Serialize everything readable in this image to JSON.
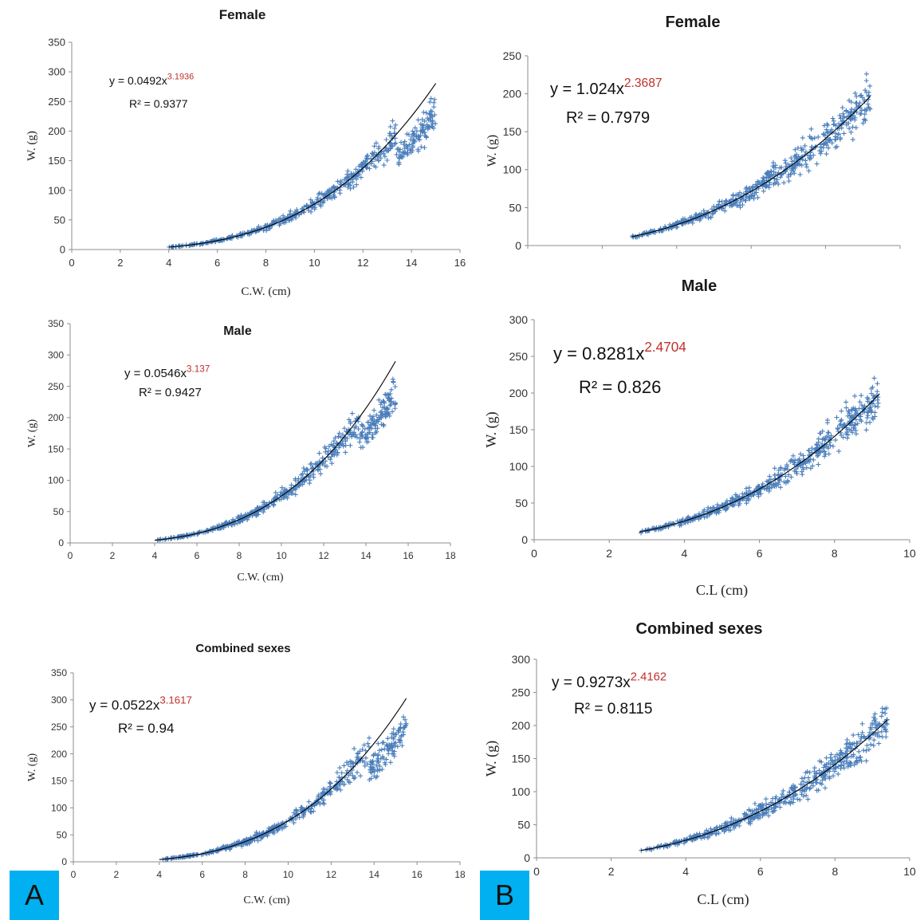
{
  "panel_labels": [
    "A",
    "B"
  ],
  "chart_data": [
    {
      "type": "scatter",
      "title": "Female",
      "xlabel": "C.W. (cm)",
      "ylabel": "W. (g)",
      "xlim": [
        0,
        16
      ],
      "ylim": [
        0,
        350
      ],
      "xticks": [
        0,
        2,
        4,
        6,
        8,
        10,
        12,
        14,
        16
      ],
      "yticks": [
        0,
        50,
        100,
        150,
        200,
        250,
        300,
        350
      ],
      "x_range": [
        4,
        15
      ],
      "fit": {
        "equation": "y = 0.0492x",
        "a": 0.0492,
        "b": 3.1936,
        "exponent_label": "3.1936",
        "r2_label": "R² = 0.9377"
      },
      "series_color": "#4a7ebb",
      "marker": "+"
    },
    {
      "type": "scatter",
      "title": "Male",
      "xlabel": "C.W. (cm)",
      "ylabel": "W. (g)",
      "xlim": [
        0,
        18
      ],
      "ylim": [
        0,
        350
      ],
      "xticks": [
        0,
        2,
        4,
        6,
        8,
        10,
        12,
        14,
        16,
        18
      ],
      "yticks": [
        0,
        50,
        100,
        150,
        200,
        250,
        300,
        350
      ],
      "x_range": [
        4,
        15.4
      ],
      "fit": {
        "equation": "y = 0.0546x",
        "a": 0.0546,
        "b": 3.137,
        "exponent_label": "3.137",
        "r2_label": "R² = 0.9427"
      },
      "series_color": "#4a7ebb",
      "marker": "+"
    },
    {
      "type": "scatter",
      "title": "Combined sexes",
      "xlabel": "C.W. (cm)",
      "ylabel": "W. (g)",
      "xlim": [
        0,
        18
      ],
      "ylim": [
        0,
        350
      ],
      "xticks": [
        0,
        2,
        4,
        6,
        8,
        10,
        12,
        14,
        16,
        18
      ],
      "yticks": [
        0,
        50,
        100,
        150,
        200,
        250,
        300,
        350
      ],
      "x_range": [
        4,
        15.5
      ],
      "fit": {
        "equation": "y = 0.0522x",
        "a": 0.0522,
        "b": 3.1617,
        "exponent_label": "3.1617",
        "r2_label": "R² = 0.94"
      },
      "series_color": "#4a7ebb",
      "marker": "+"
    },
    {
      "type": "scatter",
      "title": "Female",
      "xlabel": "",
      "ylabel": "W. (g)",
      "xlim": [
        0,
        10
      ],
      "ylim": [
        0,
        250
      ],
      "xticks": [],
      "yticks": [
        0,
        50,
        100,
        150,
        200,
        250
      ],
      "x_range": [
        2.8,
        9.2
      ],
      "fit": {
        "equation": "y = 1.024x",
        "a": 1.024,
        "b": 2.3687,
        "exponent_label": "2.3687",
        "r2_label": "R² = 0.7979"
      },
      "series_color": "#4a7ebb",
      "marker": "+"
    },
    {
      "type": "scatter",
      "title": "Male",
      "xlabel": "C.L (cm)",
      "ylabel": "W. (g)",
      "xlim": [
        0,
        10
      ],
      "ylim": [
        0,
        300
      ],
      "xticks": [
        0,
        2,
        4,
        6,
        8,
        10
      ],
      "yticks": [
        0,
        50,
        100,
        150,
        200,
        250,
        300
      ],
      "x_range": [
        2.8,
        9.2
      ],
      "fit": {
        "equation": "y = 0.8281x",
        "a": 0.8281,
        "b": 2.4704,
        "exponent_label": "2.4704",
        "r2_label": "R² = 0.826"
      },
      "series_color": "#4a7ebb",
      "marker": "+"
    },
    {
      "type": "scatter",
      "title": "Combined sexes",
      "xlabel": "C.L (cm)",
      "ylabel": "W. (g)",
      "xlim": [
        0,
        10
      ],
      "ylim": [
        0,
        300
      ],
      "xticks": [
        0,
        2,
        4,
        6,
        8,
        10
      ],
      "yticks": [
        0,
        50,
        100,
        150,
        200,
        250,
        300
      ],
      "x_range": [
        2.8,
        9.4
      ],
      "fit": {
        "equation": "y = 0.9273x",
        "a": 0.9273,
        "b": 2.4162,
        "exponent_label": "2.4162",
        "r2_label": "R² = 0.8115"
      },
      "series_color": "#4a7ebb",
      "marker": "+"
    }
  ]
}
